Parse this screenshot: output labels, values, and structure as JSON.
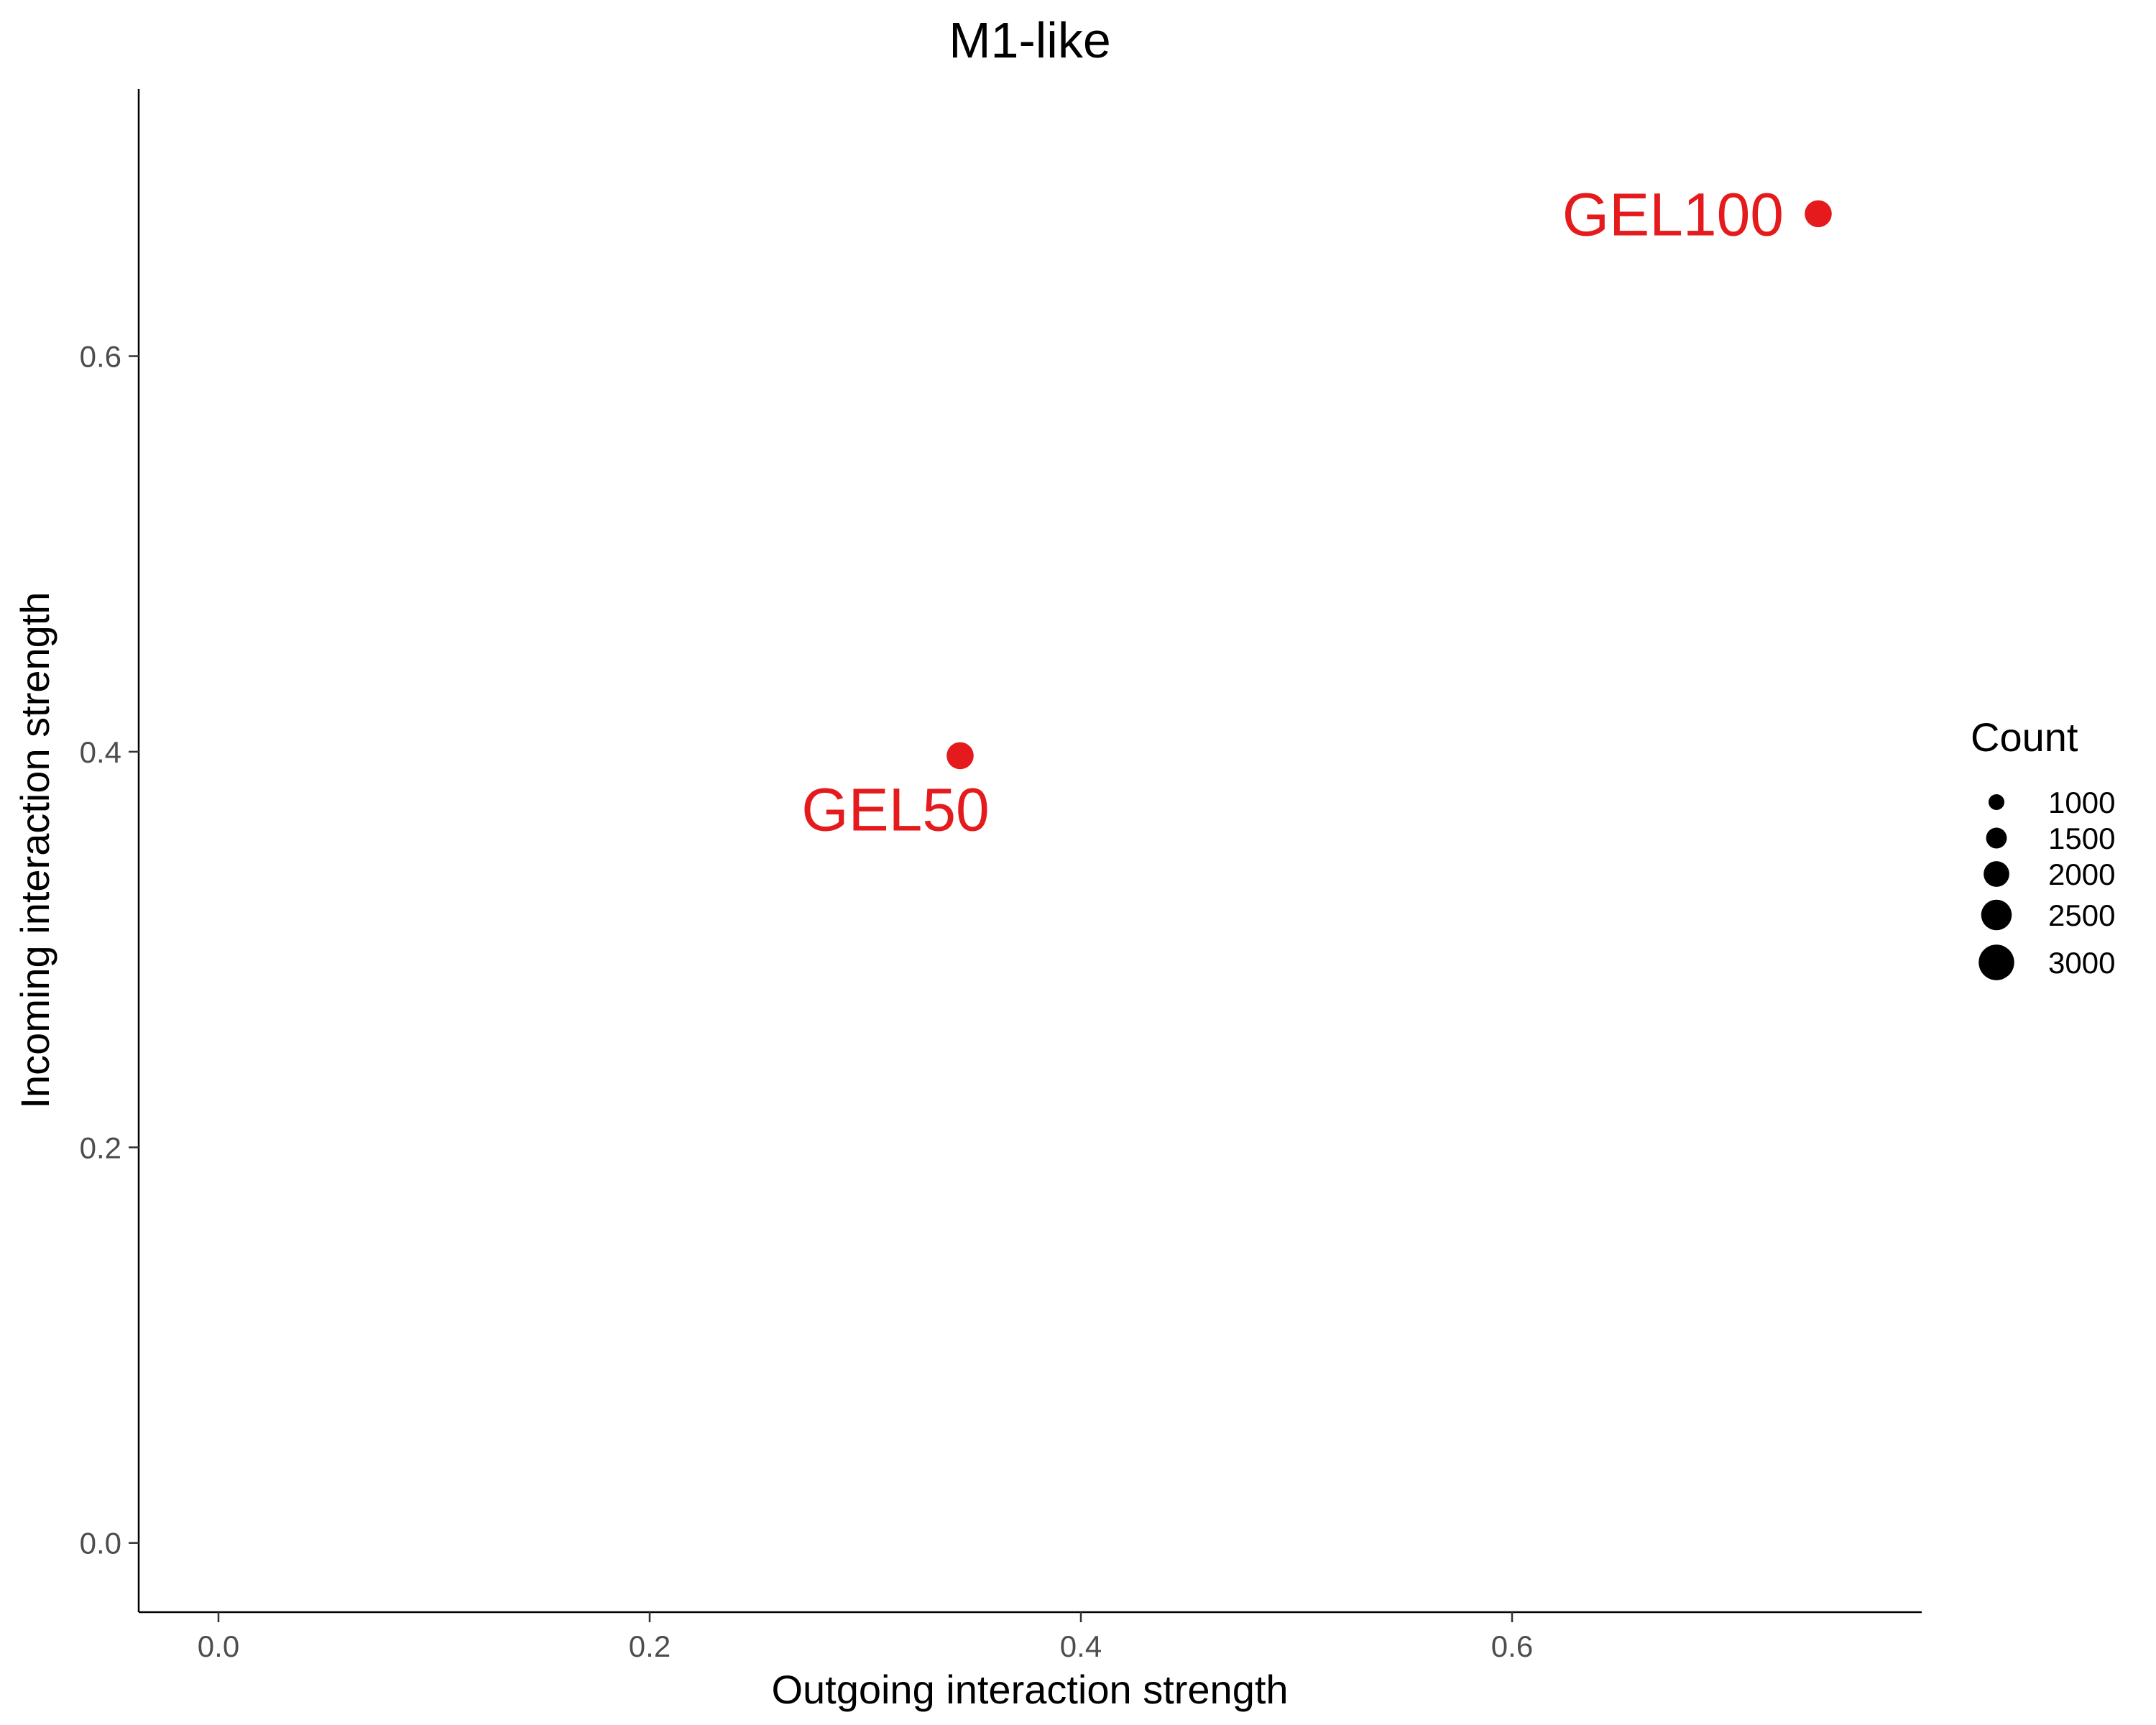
{
  "chart_data": {
    "type": "scatter",
    "title": "M1-like",
    "xlabel": "Outgoing interaction strength",
    "ylabel": "Incoming interaction strength",
    "xlim": [
      -0.037,
      0.79
    ],
    "ylim": [
      -0.035,
      0.735
    ],
    "xticks": [
      0.0,
      0.2,
      0.4,
      0.6
    ],
    "xtick_labels": [
      "0.0",
      "0.2",
      "0.4",
      "0.6"
    ],
    "yticks": [
      0.0,
      0.2,
      0.4,
      0.6
    ],
    "ytick_labels": [
      "0.0",
      "0.2",
      "0.4",
      "0.6"
    ],
    "grid": false,
    "point_color": "#E41A1C",
    "points": [
      {
        "label": "GEL100",
        "x": 0.742,
        "y": 0.672,
        "count": 2000
      },
      {
        "label": "GEL50",
        "x": 0.344,
        "y": 0.398,
        "count": 2000
      }
    ],
    "legend": {
      "title": "Count",
      "position": "right",
      "sizes": [
        1000,
        1500,
        2000,
        2500,
        3000
      ],
      "labels": [
        "1000",
        "1500",
        "2000",
        "2500",
        "3000"
      ]
    }
  }
}
